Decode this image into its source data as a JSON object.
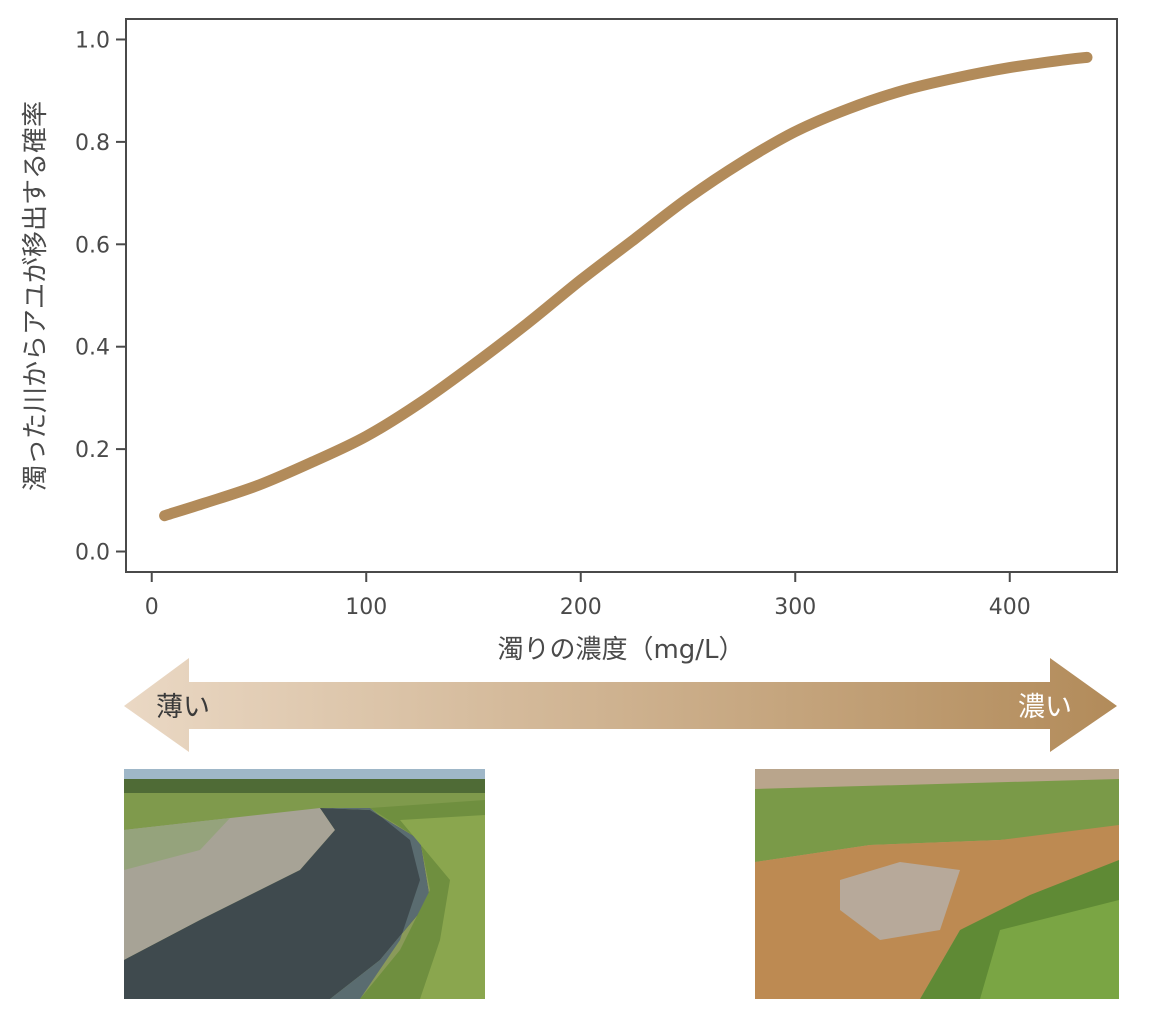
{
  "chart_data": {
    "type": "line",
    "xlabel": "濁りの濃度（mg/L）",
    "ylabel": "濁った川からアユが移出する確率",
    "xlim": [
      -12,
      450
    ],
    "ylim": [
      -0.04,
      1.04
    ],
    "xticks": [
      0,
      100,
      200,
      300,
      400
    ],
    "yticks": [
      "0.0",
      "0.2",
      "0.4",
      "0.6",
      "0.8",
      "1.0"
    ],
    "grid": false,
    "series": [
      {
        "color": "#b28b5a",
        "x": [
          6,
          25,
          50,
          75,
          100,
          125,
          150,
          175,
          200,
          225,
          250,
          275,
          300,
          325,
          350,
          375,
          400,
          425,
          436
        ],
        "y": [
          0.07,
          0.095,
          0.13,
          0.175,
          0.225,
          0.29,
          0.365,
          0.445,
          0.53,
          0.61,
          0.69,
          0.76,
          0.82,
          0.865,
          0.9,
          0.925,
          0.945,
          0.96,
          0.965
        ]
      }
    ]
  },
  "scale": {
    "left_label": "薄い",
    "right_label": "濃い",
    "color_start": "#ead8c4",
    "color_end": "#b28b5a"
  },
  "photos": {
    "left_icon": "clear-stream-photo",
    "right_icon": "turbid-stream-photo"
  }
}
